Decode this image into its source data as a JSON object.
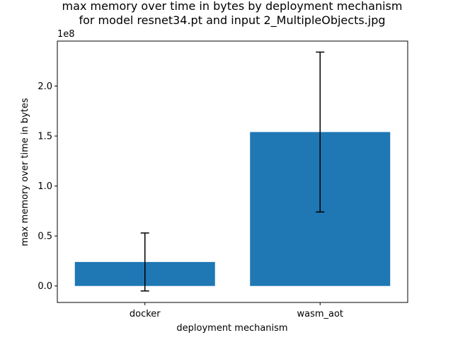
{
  "chart_data": {
    "type": "bar",
    "title_line1": "max memory over time in bytes by deployment mechanism",
    "title_line2": "for model resnet34.pt and input 2_MultipleObjects.jpg",
    "xlabel": "deployment mechanism",
    "ylabel": "max memory over time in bytes",
    "offset_label": "1e8",
    "categories": [
      "docker",
      "wasm_aot"
    ],
    "values": [
      24000000,
      154000000
    ],
    "errors": [
      29000000,
      80000000
    ],
    "ylim": [
      -16500000,
      245000000
    ],
    "yticks": [
      0,
      50000000,
      100000000,
      150000000,
      200000000
    ],
    "ytick_labels": [
      "0.0",
      "0.5",
      "1.0",
      "1.5",
      "2.0"
    ],
    "bar_color": "#1f77b4",
    "error_color": "#000000",
    "grid": false,
    "legend": "none"
  }
}
